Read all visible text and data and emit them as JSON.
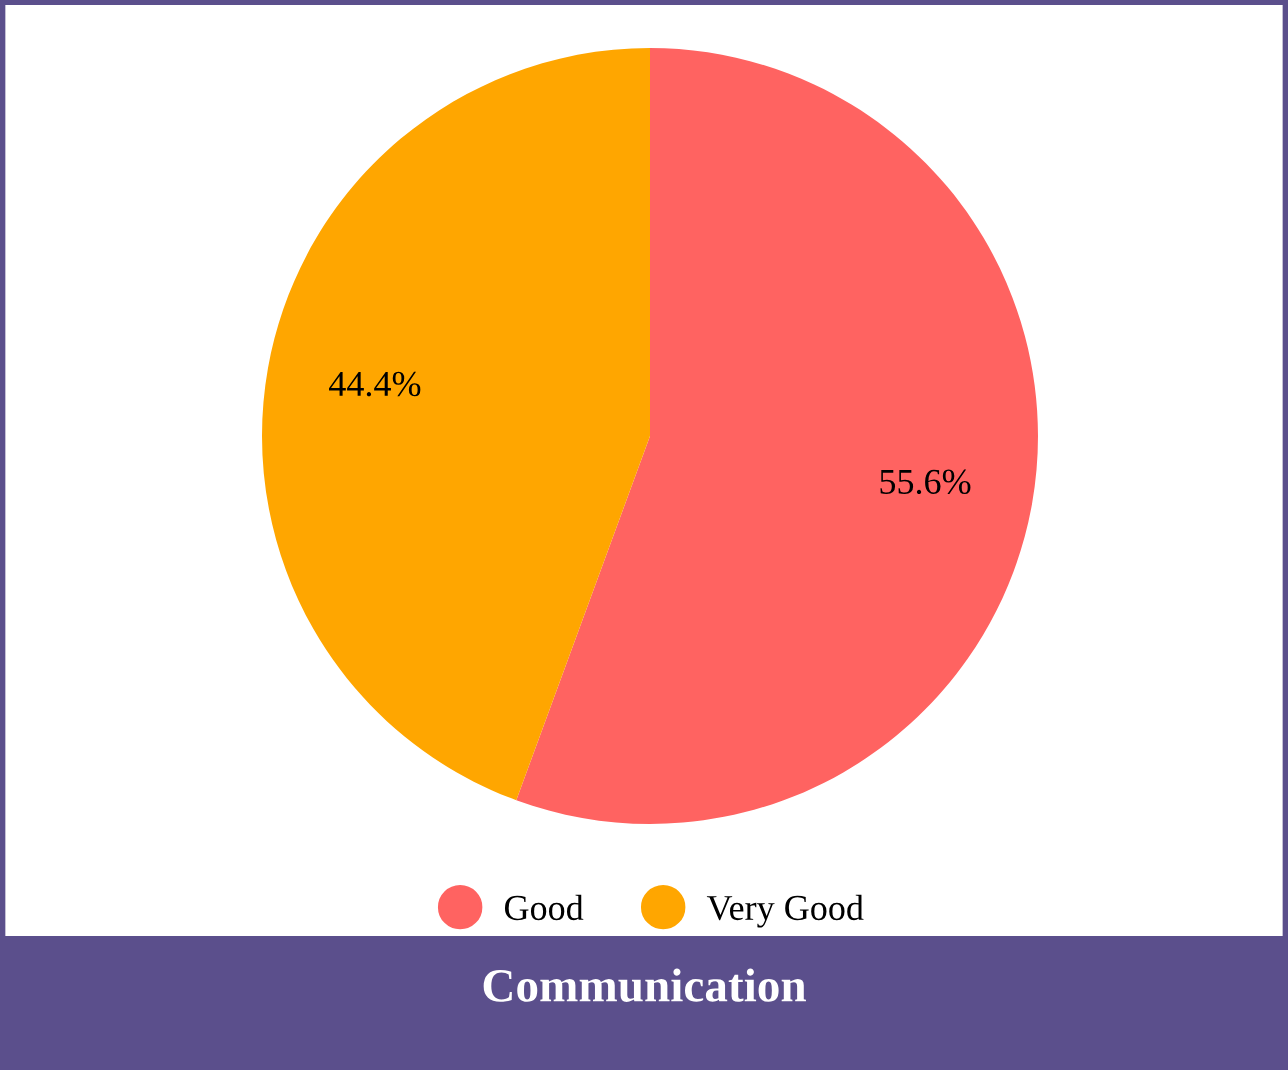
{
  "chart_data": {
    "type": "pie",
    "title": "Communication",
    "categories": [
      "Good",
      "Very Good"
    ],
    "values": [
      55.6,
      44.4
    ],
    "colors": [
      "#ff6361",
      "#ffa600"
    ],
    "value_labels": [
      "55.6%",
      "44.4%"
    ],
    "legend": "bottom"
  }
}
